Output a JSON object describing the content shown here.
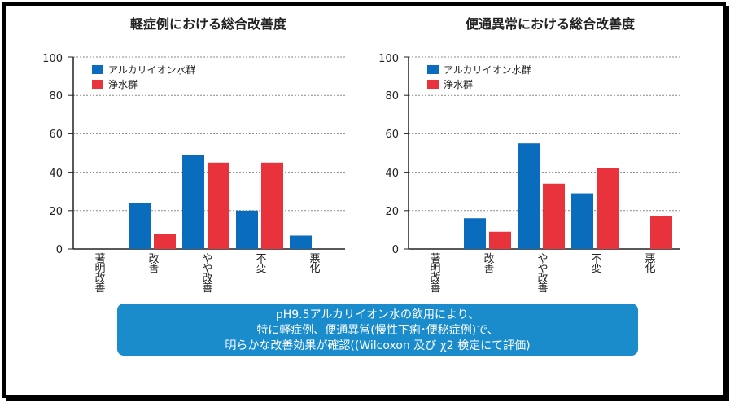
{
  "colors": {
    "alkaline": "#0a6cbc",
    "purified": "#e8333c",
    "caption_bg": "#1a8ccc"
  },
  "chart_data": [
    {
      "type": "bar",
      "title": "軽症例における総合改善度",
      "categories": [
        "著明改善",
        "改善",
        "やや改善",
        "不変",
        "悪化"
      ],
      "series": [
        {
          "name": "アルカリイオン水群",
          "values": [
            0,
            24,
            49,
            20,
            7
          ]
        },
        {
          "name": "浄水群",
          "values": [
            0,
            8,
            45,
            45,
            0
          ]
        }
      ],
      "ylim": [
        0,
        100
      ],
      "yticks": [
        "0",
        "20",
        "40",
        "60",
        "80",
        "100"
      ],
      "grid": true,
      "legend": "top-left"
    },
    {
      "type": "bar",
      "title": "便通異常における総合改善度",
      "categories": [
        "著明改善",
        "改善",
        "やや改善",
        "不変",
        "悪化"
      ],
      "series": [
        {
          "name": "アルカリイオン水群",
          "values": [
            0,
            16,
            55,
            29,
            0
          ]
        },
        {
          "name": "浄水群",
          "values": [
            0,
            9,
            34,
            42,
            17
          ]
        }
      ],
      "ylim": [
        0,
        100
      ],
      "yticks": [
        "0",
        "20",
        "40",
        "60",
        "80",
        "100"
      ],
      "grid": true,
      "legend": "top-left"
    }
  ],
  "caption": {
    "line1": "pH9.5アルカリイオン水の飲用により、",
    "line2": "特に軽症例、便通異常(慢性下痢･便秘症例)で、",
    "line3": "明らかな改善効果が確認((Wilcoxon 及び χ2 検定にて評価)"
  }
}
